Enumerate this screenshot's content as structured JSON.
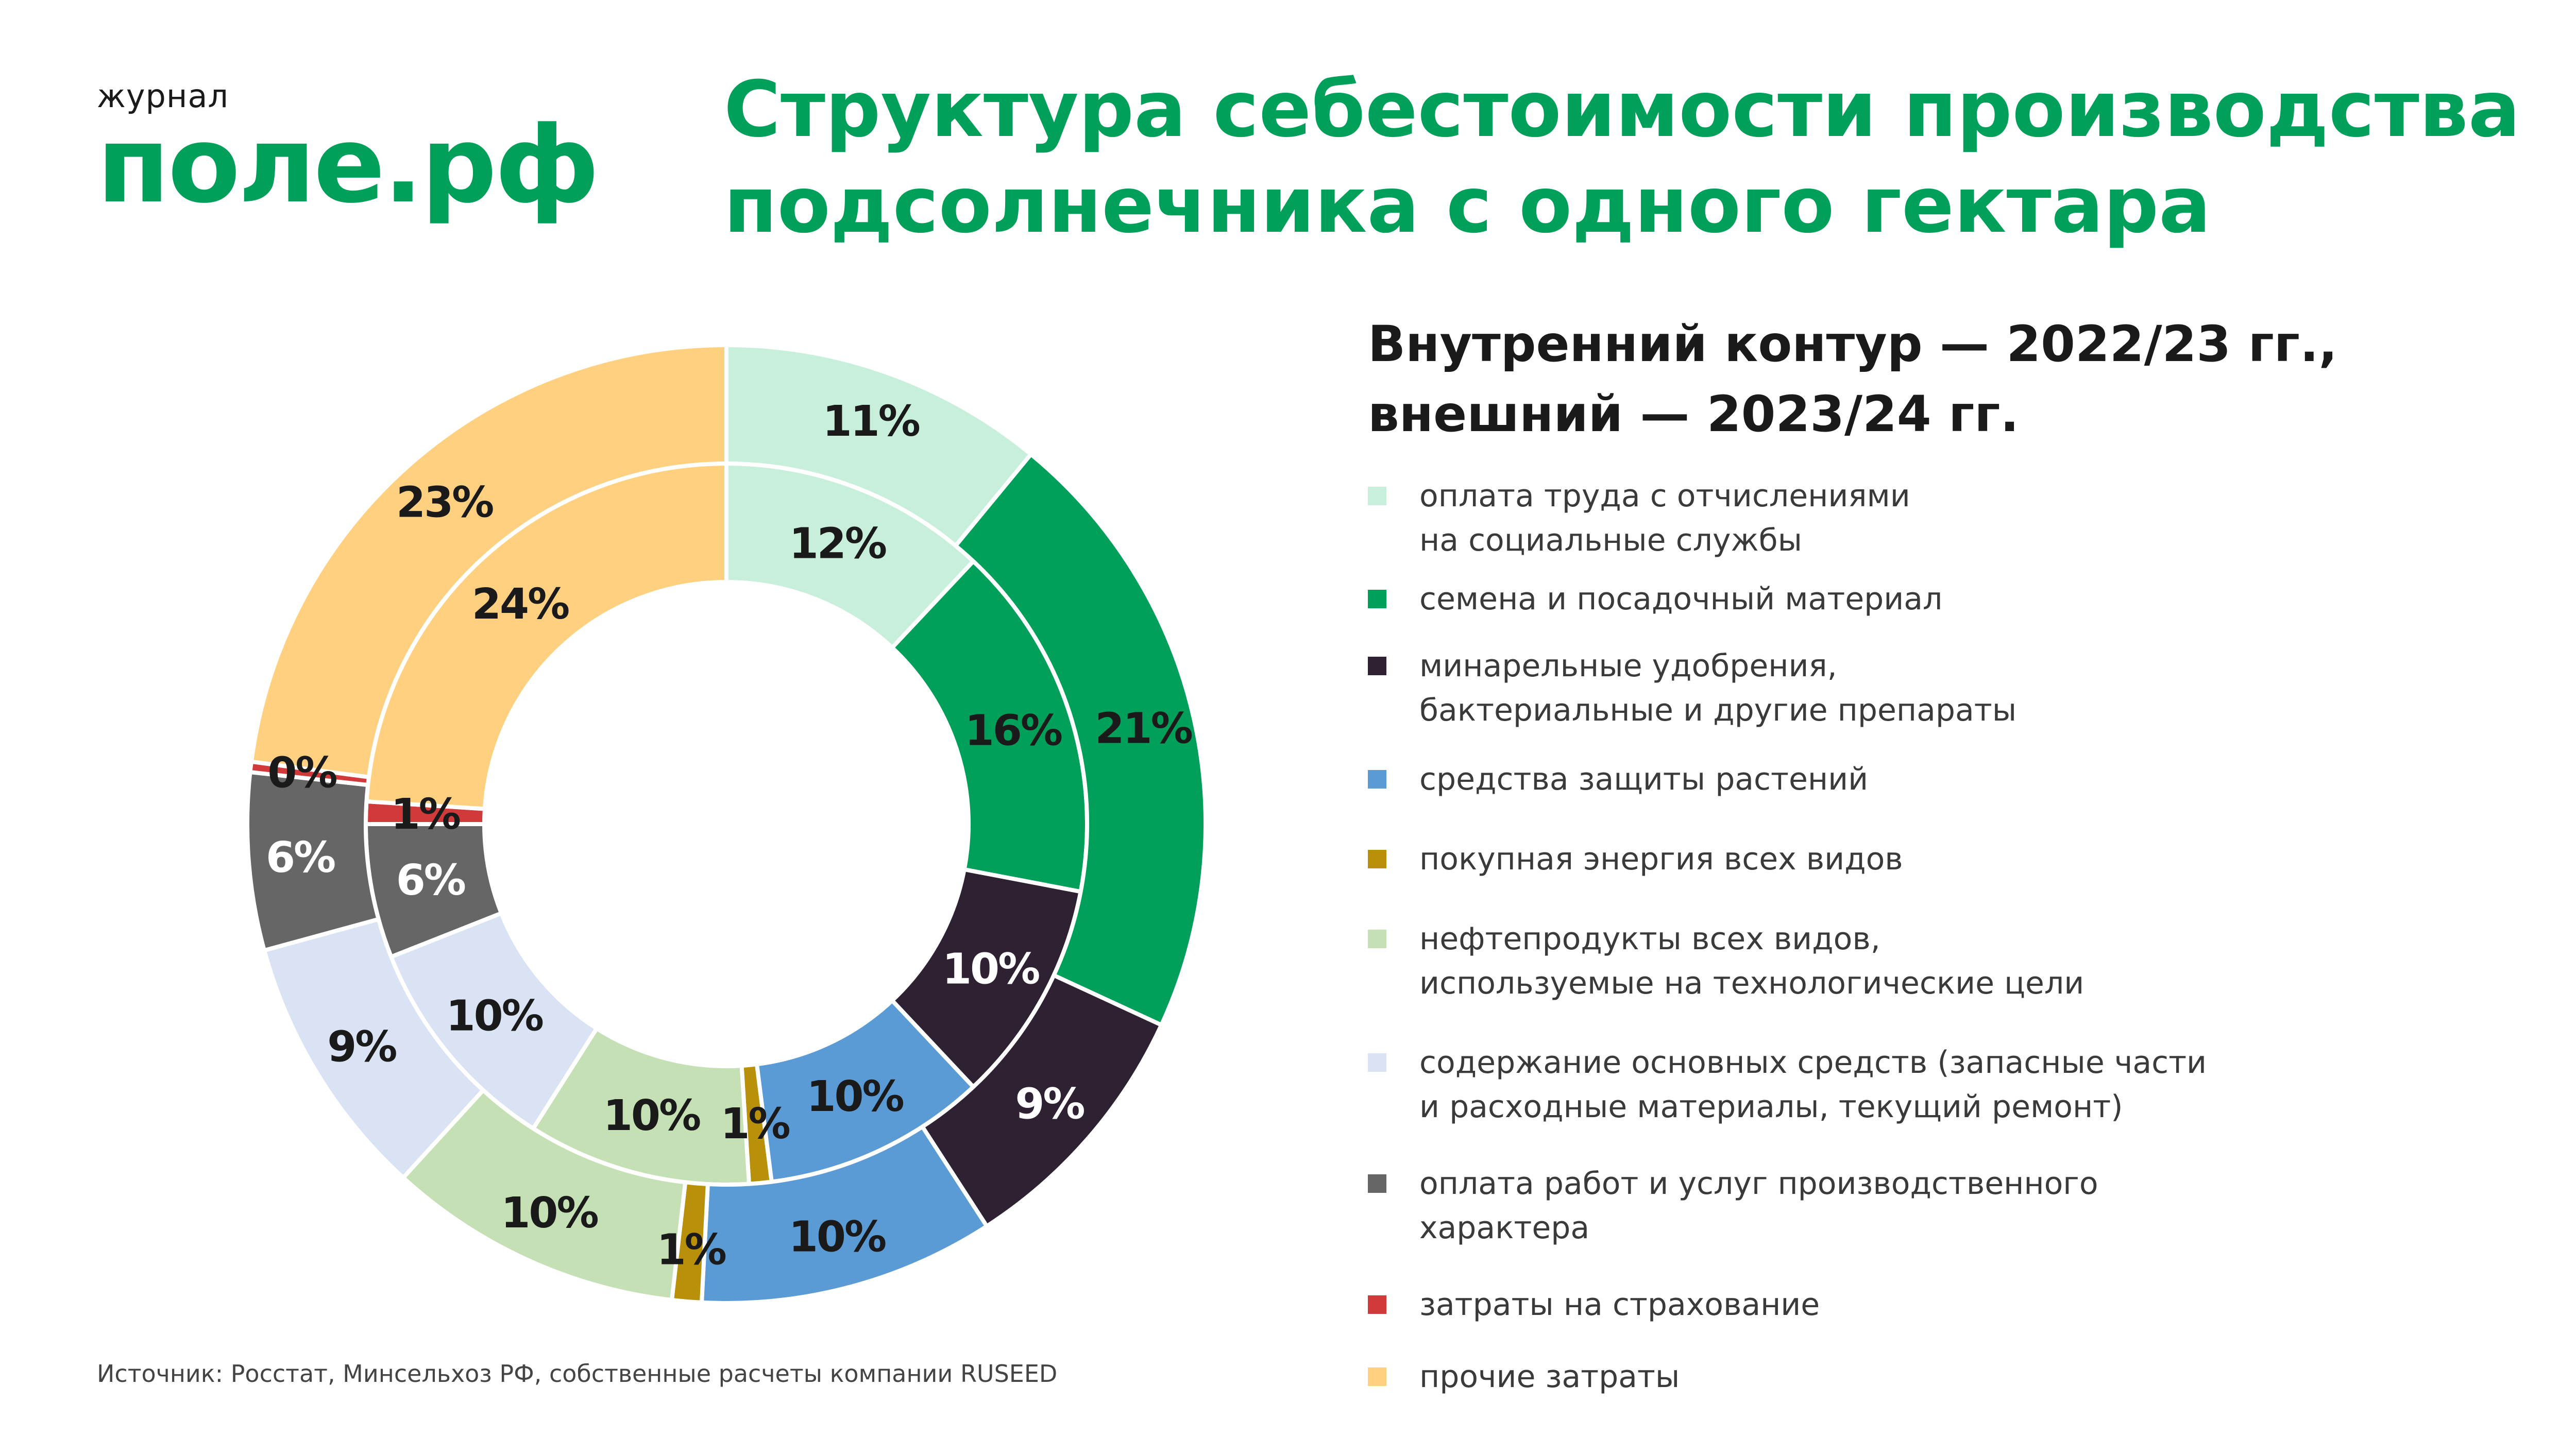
{
  "logo": {
    "small": "журнал",
    "big": "поле.рф"
  },
  "title": {
    "line1": "Структура себестоимости производства",
    "line2": "подсолнечника с одного гектара"
  },
  "legend_title": {
    "line1": "Внутренний контур — 2022/23 гг.,",
    "line2": "внешний — 2023/24 гг."
  },
  "source": "Источник: Росстат, Минсельхоз РФ, собственные расчеты компании RUSEED",
  "chart_data": {
    "type": "donut",
    "title": "Структура себестоимости производства подсолнечника с одного гектара",
    "categories": [
      {
        "label": "оплата труда с отчислениями на социальные службы",
        "lines": [
          "оплата труда с отчислениями",
          "на социальные службы"
        ],
        "color": "#c8efdb"
      },
      {
        "label": "семена и посадочный материал",
        "lines": [
          "семена и посадочный материал"
        ],
        "color": "#00a05a"
      },
      {
        "label": "минарельные удобрения, бактериальные и другие препараты",
        "lines": [
          "минарельные удобрения,",
          "бактериальные и другие препараты"
        ],
        "color": "#2e2132"
      },
      {
        "label": "средства защиты растений",
        "lines": [
          "средства защиты растений"
        ],
        "color": "#5b9bd5"
      },
      {
        "label": "покупная энергия всех видов",
        "lines": [
          "покупная энергия всех видов"
        ],
        "color": "#b8900a"
      },
      {
        "label": "нефтепродукты всех видов, используемые на технологические цели",
        "lines": [
          "нефтепродукты всех видов,",
          "используемые на технологические цели"
        ],
        "color": "#c5e0b4"
      },
      {
        "label": "содержание основных средств (запасные части и расходные материалы, текущий ремонт)",
        "lines": [
          "содержание основных средств (запасные части",
          "и расходные материалы, текущий ремонт)"
        ],
        "color": "#dae3f3"
      },
      {
        "label": "оплата работ и услуг производственного характера",
        "lines": [
          "оплата работ и услуг производственного",
          "характера"
        ],
        "color": "#666666"
      },
      {
        "label": "затраты на страхование",
        "lines": [
          "затраты на страхование"
        ],
        "color": "#d13a3a"
      },
      {
        "label": "прочие затраты",
        "lines": [
          "прочие затраты"
        ],
        "color": "#ffd07f"
      }
    ],
    "series": [
      {
        "name": "2022/23",
        "ring": "inner",
        "values": [
          12,
          16,
          10,
          10,
          1,
          10,
          10,
          6,
          1,
          24
        ],
        "labels": [
          "12%",
          "16%",
          "10%",
          "10%",
          "1%",
          "10%",
          "10%",
          "6%",
          "1%",
          "24%"
        ]
      },
      {
        "name": "2023/24",
        "ring": "outer",
        "values": [
          11,
          21,
          9,
          10,
          1,
          10,
          9,
          6,
          0.35,
          23
        ],
        "labels": [
          "11%",
          "21%",
          "9%",
          "10%",
          "1%",
          "10%",
          "9%",
          "6%",
          "0%",
          "23%"
        ]
      }
    ],
    "legend": "right"
  }
}
